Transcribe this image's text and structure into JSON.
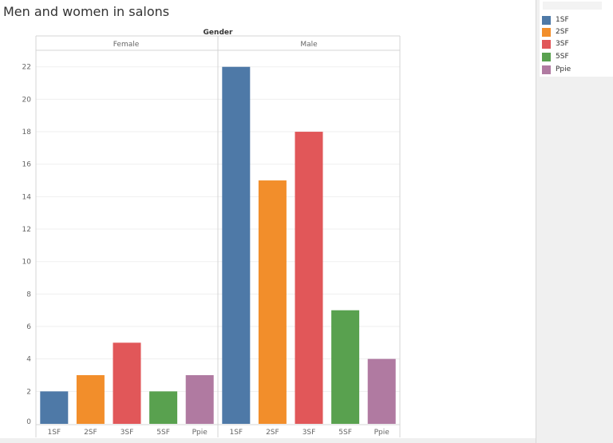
{
  "title": "Men and women in salons",
  "colors": {
    "1SF": "#4e79a7",
    "2SF": "#f28e2b",
    "3SF": "#e15759",
    "5SF": "#59a14f",
    "Ppie": "#b07aa1"
  },
  "legend": {
    "items": [
      {
        "label": "1SF",
        "color": "#4e79a7"
      },
      {
        "label": "2SF",
        "color": "#f28e2b"
      },
      {
        "label": "3SF",
        "color": "#e15759"
      },
      {
        "label": "5SF",
        "color": "#59a14f"
      },
      {
        "label": "Ppie",
        "color": "#b07aa1"
      }
    ]
  },
  "chart_data": {
    "type": "bar",
    "title": "Men and women in salons",
    "column_header": "Gender",
    "panels": [
      "Female",
      "Male"
    ],
    "categories": [
      "1SF",
      "2SF",
      "3SF",
      "5SF",
      "Ppie"
    ],
    "series": [
      {
        "panel": "Female",
        "values": [
          2,
          3,
          5,
          2,
          3
        ]
      },
      {
        "panel": "Male",
        "values": [
          22,
          15,
          18,
          7,
          4
        ]
      }
    ],
    "yticks": [
      0,
      2,
      4,
      6,
      8,
      10,
      12,
      14,
      16,
      18,
      20,
      22
    ],
    "ylim": [
      0,
      23
    ],
    "grid": true,
    "legend_position": "right"
  }
}
